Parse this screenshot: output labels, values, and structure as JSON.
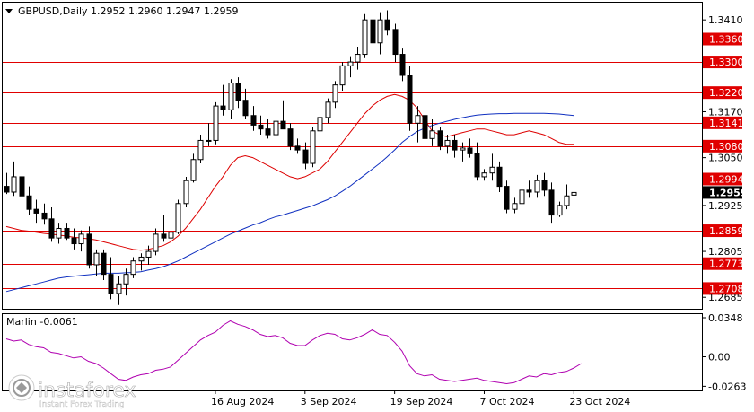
{
  "chart_data": {
    "type": "candlestick",
    "title": "GBPUSD,Daily  1.2952 1.2960 1.2947 1.2959",
    "symbol": "GBPUSD",
    "timeframe": "Daily",
    "ohlc_header": [
      "1.2952",
      "1.2960",
      "1.2947",
      "1.2959"
    ],
    "current_price": "1.2959",
    "price_ylim": [
      1.2655,
      1.3455
    ],
    "price_ticks": [
      "1.3410",
      "1.3360",
      "1.3300",
      "1.3220",
      "1.3170",
      "1.3141",
      "1.3080",
      "1.3050",
      "1.2994",
      "1.2959",
      "1.2925",
      "1.2859",
      "1.2805",
      "1.2773",
      "1.2708",
      "1.2685"
    ],
    "levels": [
      "1.3360",
      "1.3300",
      "1.3220",
      "1.3141",
      "1.3080",
      "1.2994",
      "1.2859",
      "1.2773",
      "1.2708"
    ],
    "x_labels": [
      {
        "label": "16 Aug 2024",
        "index": 28
      },
      {
        "label": "3 Sep 2024",
        "index": 40
      },
      {
        "label": "19 Sep 2024",
        "index": 52
      },
      {
        "label": "7 Oct 2024",
        "index": 64
      },
      {
        "label": "23 Oct 2024",
        "index": 76
      }
    ],
    "candles": [
      [
        1.2975,
        1.301,
        1.2955,
        1.296
      ],
      [
        1.296,
        1.304,
        1.295,
        1.3
      ],
      [
        1.3,
        1.302,
        1.294,
        1.295
      ],
      [
        1.295,
        1.2975,
        1.29,
        1.2915
      ],
      [
        1.2915,
        1.294,
        1.288,
        1.2905
      ],
      [
        1.2905,
        1.293,
        1.2875,
        1.289
      ],
      [
        1.289,
        1.292,
        1.283,
        1.284
      ],
      [
        1.284,
        1.288,
        1.2825,
        1.2865
      ],
      [
        1.2865,
        1.288,
        1.2835,
        1.284
      ],
      [
        1.284,
        1.2865,
        1.281,
        1.2825
      ],
      [
        1.2825,
        1.286,
        1.2805,
        1.285
      ],
      [
        1.285,
        1.287,
        1.276,
        1.277
      ],
      [
        1.277,
        1.281,
        1.274,
        1.28
      ],
      [
        1.28,
        1.281,
        1.273,
        1.2745
      ],
      [
        1.2745,
        1.279,
        1.268,
        1.2695
      ],
      [
        1.2695,
        1.274,
        1.2665,
        1.272
      ],
      [
        1.272,
        1.276,
        1.269,
        1.2745
      ],
      [
        1.2745,
        1.279,
        1.2735,
        1.278
      ],
      [
        1.278,
        1.28,
        1.2755,
        1.279
      ],
      [
        1.279,
        1.282,
        1.277,
        1.2805
      ],
      [
        1.2805,
        1.2865,
        1.2795,
        1.285
      ],
      [
        1.285,
        1.29,
        1.283,
        1.284
      ],
      [
        1.284,
        1.2865,
        1.2815,
        1.2855
      ],
      [
        1.2855,
        1.294,
        1.285,
        1.293
      ],
      [
        1.293,
        1.3,
        1.292,
        1.299
      ],
      [
        1.299,
        1.306,
        1.2985,
        1.3045
      ],
      [
        1.3045,
        1.311,
        1.3035,
        1.3095
      ],
      [
        1.3095,
        1.314,
        1.308,
        1.3095
      ],
      [
        1.3095,
        1.3195,
        1.3085,
        1.3185
      ],
      [
        1.3185,
        1.324,
        1.316,
        1.3175
      ],
      [
        1.3175,
        1.3255,
        1.315,
        1.3245
      ],
      [
        1.3245,
        1.326,
        1.318,
        1.32
      ],
      [
        1.32,
        1.323,
        1.315,
        1.316
      ],
      [
        1.316,
        1.3185,
        1.312,
        1.3135
      ],
      [
        1.3135,
        1.316,
        1.311,
        1.3125
      ],
      [
        1.3125,
        1.315,
        1.31,
        1.311
      ],
      [
        1.311,
        1.3155,
        1.31,
        1.3145
      ],
      [
        1.3145,
        1.32,
        1.313,
        1.3125
      ],
      [
        1.3125,
        1.314,
        1.307,
        1.308
      ],
      [
        1.308,
        1.31,
        1.306,
        1.307
      ],
      [
        1.307,
        1.309,
        1.302,
        1.3035
      ],
      [
        1.3035,
        1.313,
        1.3025,
        1.312
      ],
      [
        1.312,
        1.3165,
        1.31,
        1.3155
      ],
      [
        1.3155,
        1.3205,
        1.314,
        1.3195
      ],
      [
        1.3195,
        1.325,
        1.318,
        1.324
      ],
      [
        1.324,
        1.33,
        1.3225,
        1.329
      ],
      [
        1.329,
        1.3315,
        1.326,
        1.33
      ],
      [
        1.33,
        1.334,
        1.328,
        1.332
      ],
      [
        1.332,
        1.3425,
        1.331,
        1.341
      ],
      [
        1.341,
        1.344,
        1.333,
        1.335
      ],
      [
        1.335,
        1.343,
        1.332,
        1.341
      ],
      [
        1.341,
        1.3435,
        1.337,
        1.3385
      ],
      [
        1.3385,
        1.34,
        1.33,
        1.332
      ],
      [
        1.332,
        1.3335,
        1.325,
        1.3265
      ],
      [
        1.3265,
        1.329,
        1.312,
        1.314
      ],
      [
        1.314,
        1.3185,
        1.309,
        1.316
      ],
      [
        1.316,
        1.317,
        1.308,
        1.31
      ],
      [
        1.31,
        1.315,
        1.308,
        1.312
      ],
      [
        1.312,
        1.313,
        1.307,
        1.308
      ],
      [
        1.308,
        1.311,
        1.306,
        1.3095
      ],
      [
        1.3095,
        1.311,
        1.305,
        1.307
      ],
      [
        1.307,
        1.309,
        1.304,
        1.3075
      ],
      [
        1.3075,
        1.31,
        1.305,
        1.306
      ],
      [
        1.306,
        1.309,
        1.299,
        1.3
      ],
      [
        1.3,
        1.302,
        1.299,
        1.301
      ],
      [
        1.301,
        1.306,
        1.299,
        1.3025
      ],
      [
        1.3025,
        1.304,
        1.296,
        1.2975
      ],
      [
        1.2975,
        1.299,
        1.2905,
        1.2915
      ],
      [
        1.2915,
        1.2945,
        1.2905,
        1.293
      ],
      [
        1.293,
        1.299,
        1.292,
        1.2965
      ],
      [
        1.2965,
        1.299,
        1.2945,
        1.296
      ],
      [
        1.296,
        1.3005,
        1.2945,
        1.299
      ],
      [
        1.299,
        1.301,
        1.295,
        1.2965
      ],
      [
        1.2965,
        1.2985,
        1.288,
        1.29
      ],
      [
        1.29,
        1.2935,
        1.2895,
        1.2925
      ],
      [
        1.2925,
        1.298,
        1.2915,
        1.295
      ],
      [
        1.2952,
        1.296,
        1.2947,
        1.2959
      ]
    ],
    "ma_red": [
      1.287,
      1.2865,
      1.286,
      1.2858,
      1.2855,
      1.2852,
      1.285,
      1.2848,
      1.2845,
      1.2842,
      1.284,
      1.2838,
      1.2835,
      1.283,
      1.2825,
      1.282,
      1.2815,
      1.281,
      1.2808,
      1.281,
      1.2815,
      1.282,
      1.283,
      1.2845,
      1.2865,
      1.289,
      1.2915,
      1.2945,
      1.2975,
      1.3,
      1.303,
      1.305,
      1.3055,
      1.305,
      1.304,
      1.303,
      1.302,
      1.301,
      1.3,
      1.2995,
      1.3,
      1.301,
      1.302,
      1.304,
      1.3065,
      1.309,
      1.3115,
      1.314,
      1.3165,
      1.3185,
      1.32,
      1.321,
      1.3215,
      1.321,
      1.32,
      1.318,
      1.315,
      1.312,
      1.311,
      1.3105,
      1.311,
      1.3115,
      1.312,
      1.3125,
      1.3125,
      1.312,
      1.3115,
      1.311,
      1.311,
      1.3115,
      1.312,
      1.3115,
      1.311,
      1.31,
      1.309,
      1.3085,
      1.3085
    ],
    "ma_blue": [
      1.27,
      1.2705,
      1.271,
      1.2715,
      1.272,
      1.2725,
      1.273,
      1.2735,
      1.2738,
      1.274,
      1.2742,
      1.2744,
      1.2746,
      1.2748,
      1.2748,
      1.2748,
      1.2749,
      1.275,
      1.2752,
      1.2756,
      1.276,
      1.2765,
      1.2772,
      1.278,
      1.279,
      1.28,
      1.281,
      1.282,
      1.283,
      1.284,
      1.285,
      1.2858,
      1.2866,
      1.2874,
      1.288,
      1.2888,
      1.2895,
      1.29,
      1.2906,
      1.2912,
      1.2918,
      1.2924,
      1.2932,
      1.294,
      1.295,
      1.2962,
      1.2975,
      1.299,
      1.3005,
      1.302,
      1.3035,
      1.3052,
      1.307,
      1.309,
      1.3105,
      1.3118,
      1.3127,
      1.3134,
      1.314,
      1.3145,
      1.315,
      1.3154,
      1.3158,
      1.3161,
      1.3163,
      1.3164,
      1.3165,
      1.3165,
      1.3166,
      1.3166,
      1.3166,
      1.3166,
      1.3166,
      1.3165,
      1.3164,
      1.3162,
      1.316
    ],
    "oscillator": {
      "name": "Marlin",
      "value": "-0.0061",
      "ylim": [
        -0.03,
        0.038
      ],
      "ticks": [
        "0.0348",
        "0.00",
        "-0.0263"
      ],
      "values": [
        0.016,
        0.014,
        0.015,
        0.011,
        0.009,
        0.008,
        0.004,
        0.003,
        0.001,
        -0.001,
        0.0,
        -0.004,
        -0.006,
        -0.01,
        -0.015,
        -0.02,
        -0.021,
        -0.018,
        -0.016,
        -0.015,
        -0.012,
        -0.011,
        -0.009,
        -0.003,
        0.003,
        0.009,
        0.015,
        0.019,
        0.022,
        0.028,
        0.032,
        0.029,
        0.027,
        0.024,
        0.02,
        0.018,
        0.019,
        0.017,
        0.012,
        0.01,
        0.01,
        0.015,
        0.019,
        0.021,
        0.02,
        0.016,
        0.015,
        0.017,
        0.02,
        0.024,
        0.02,
        0.019,
        0.013,
        0.005,
        -0.008,
        -0.015,
        -0.017,
        -0.016,
        -0.02,
        -0.021,
        -0.022,
        -0.021,
        -0.02,
        -0.019,
        -0.021,
        -0.022,
        -0.023,
        -0.024,
        -0.023,
        -0.02,
        -0.017,
        -0.018,
        -0.015,
        -0.016,
        -0.014,
        -0.013,
        -0.01,
        -0.006
      ]
    }
  },
  "watermark": {
    "brand": "instaforex",
    "tagline": "Instant Forex Trading"
  }
}
